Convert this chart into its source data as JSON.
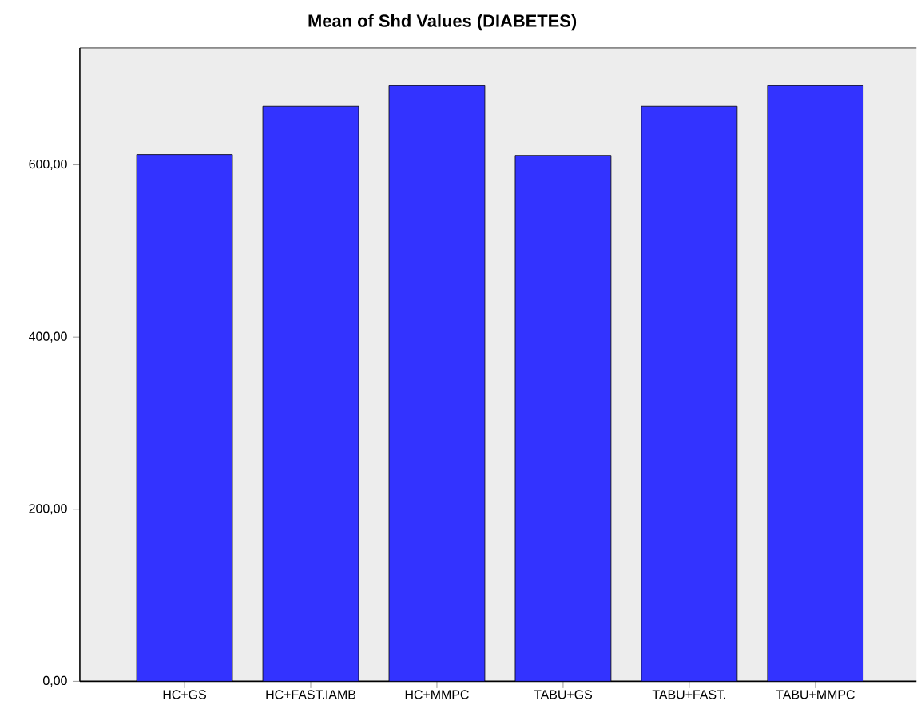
{
  "chart_data": {
    "type": "bar",
    "title": "Mean of Shd Values (DIABETES)",
    "categories": [
      "HC+GS",
      "HC+FAST.IAMB",
      "HC+MMPC",
      "TABU+GS",
      "TABU+FAST.",
      "TABU+MMPC"
    ],
    "values": [
      612,
      668,
      692,
      611,
      668,
      692
    ],
    "color": "#3333ff",
    "ylim": [
      0,
      736
    ],
    "yticks": [
      {
        "value": 0,
        "label": "0,00"
      },
      {
        "value": 200,
        "label": "200,00"
      },
      {
        "value": 400,
        "label": "400,00"
      },
      {
        "value": 600,
        "label": "600,00"
      }
    ],
    "grid": false
  }
}
